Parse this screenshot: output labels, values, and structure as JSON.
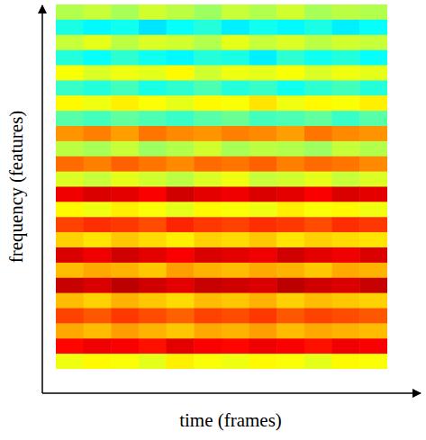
{
  "chart_data": {
    "type": "heatmap",
    "x_label": "time (frames)",
    "y_label": "frequency (features)",
    "tick_labels": false,
    "zlim": [
      0,
      1
    ],
    "cells": [
      [
        0.55,
        0.57,
        0.54,
        0.58,
        0.56,
        0.53,
        0.57,
        0.55,
        0.58,
        0.54,
        0.56,
        0.55
      ],
      [
        0.4,
        0.37,
        0.39,
        0.35,
        0.38,
        0.41,
        0.36,
        0.39,
        0.37,
        0.4,
        0.36,
        0.38
      ],
      [
        0.57,
        0.6,
        0.56,
        0.59,
        0.58,
        0.55,
        0.6,
        0.57,
        0.59,
        0.56,
        0.58,
        0.57
      ],
      [
        0.41,
        0.38,
        0.42,
        0.39,
        0.37,
        0.41,
        0.4,
        0.36,
        0.42,
        0.39,
        0.41,
        0.38
      ],
      [
        0.62,
        0.59,
        0.61,
        0.6,
        0.63,
        0.58,
        0.61,
        0.6,
        0.62,
        0.59,
        0.61,
        0.6
      ],
      [
        0.43,
        0.41,
        0.44,
        0.4,
        0.42,
        0.45,
        0.41,
        0.43,
        0.39,
        0.42,
        0.44,
        0.41
      ],
      [
        0.63,
        0.61,
        0.64,
        0.62,
        0.6,
        0.63,
        0.62,
        0.65,
        0.61,
        0.63,
        0.62,
        0.64
      ],
      [
        0.46,
        0.44,
        0.47,
        0.45,
        0.43,
        0.46,
        0.48,
        0.44,
        0.45,
        0.47,
        0.43,
        0.46
      ],
      [
        0.73,
        0.75,
        0.72,
        0.76,
        0.74,
        0.73,
        0.75,
        0.74,
        0.72,
        0.76,
        0.74,
        0.73
      ],
      [
        0.56,
        0.54,
        0.57,
        0.53,
        0.55,
        0.58,
        0.54,
        0.56,
        0.55,
        0.53,
        0.57,
        0.55
      ],
      [
        0.77,
        0.75,
        0.78,
        0.76,
        0.74,
        0.77,
        0.76,
        0.78,
        0.75,
        0.77,
        0.76,
        0.74
      ],
      [
        0.59,
        0.57,
        0.6,
        0.58,
        0.56,
        0.59,
        0.61,
        0.57,
        0.58,
        0.6,
        0.57,
        0.59
      ],
      [
        0.89,
        0.91,
        0.9,
        0.88,
        0.92,
        0.9,
        0.89,
        0.91,
        0.9,
        0.88,
        0.91,
        0.9
      ],
      [
        0.63,
        0.61,
        0.64,
        0.62,
        0.6,
        0.63,
        0.62,
        0.61,
        0.64,
        0.62,
        0.63,
        0.61
      ],
      [
        0.81,
        0.83,
        0.82,
        0.8,
        0.84,
        0.82,
        0.81,
        0.83,
        0.82,
        0.8,
        0.83,
        0.82
      ],
      [
        0.67,
        0.65,
        0.68,
        0.66,
        0.64,
        0.67,
        0.66,
        0.68,
        0.65,
        0.67,
        0.66,
        0.65
      ],
      [
        0.91,
        0.89,
        0.92,
        0.9,
        0.88,
        0.91,
        0.9,
        0.89,
        0.92,
        0.9,
        0.89,
        0.91
      ],
      [
        0.69,
        0.71,
        0.7,
        0.68,
        0.72,
        0.7,
        0.69,
        0.71,
        0.7,
        0.68,
        0.71,
        0.7
      ],
      [
        0.93,
        0.91,
        0.94,
        0.92,
        0.9,
        0.93,
        0.92,
        0.91,
        0.94,
        0.92,
        0.91,
        0.93
      ],
      [
        0.69,
        0.67,
        0.7,
        0.68,
        0.66,
        0.69,
        0.68,
        0.7,
        0.67,
        0.69,
        0.68,
        0.67
      ],
      [
        0.81,
        0.79,
        0.82,
        0.8,
        0.78,
        0.81,
        0.8,
        0.82,
        0.79,
        0.81,
        0.8,
        0.79
      ],
      [
        0.71,
        0.69,
        0.72,
        0.7,
        0.68,
        0.71,
        0.7,
        0.72,
        0.69,
        0.71,
        0.7,
        0.69
      ],
      [
        0.87,
        0.89,
        0.88,
        0.86,
        0.9,
        0.88,
        0.87,
        0.89,
        0.88,
        0.86,
        0.89,
        0.88
      ],
      [
        0.61,
        0.63,
        0.62,
        0.6,
        0.64,
        0.62,
        0.61,
        0.63,
        0.62,
        0.6,
        0.63,
        0.62
      ]
    ]
  }
}
